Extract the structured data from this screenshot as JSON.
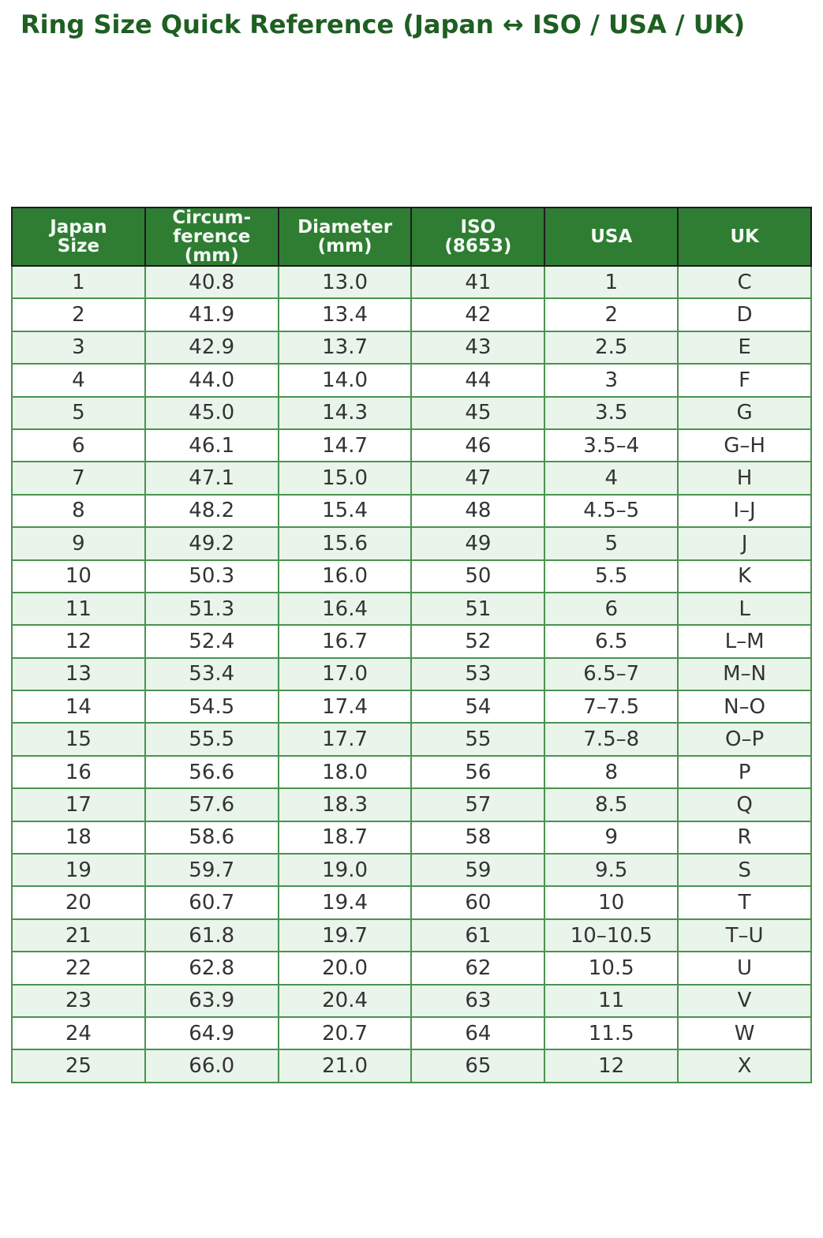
{
  "title": "Ring Size Quick Reference (Japan ↔ ISO / USA / UK)",
  "colors": {
    "title": "#1e5f22",
    "header_bg": "#2e7d32",
    "header_text": "#f5faf5",
    "header_border": "#1c1c1c",
    "grid_green": "#4a9350",
    "row_alt_bg": "#e9f4ea",
    "row_bg": "#ffffff",
    "cell_text": "#333333"
  },
  "chart_data": {
    "type": "table",
    "title": "Ring Size Quick Reference (Japan ↔ ISO / USA / UK)",
    "columns": [
      "Japan\nSize",
      "Circum-\nference\n(mm)",
      "Diameter\n(mm)",
      "ISO\n(8653)",
      "USA",
      "UK"
    ],
    "rows": [
      [
        "1",
        "40.8",
        "13.0",
        "41",
        "1",
        "C"
      ],
      [
        "2",
        "41.9",
        "13.4",
        "42",
        "2",
        "D"
      ],
      [
        "3",
        "42.9",
        "13.7",
        "43",
        "2.5",
        "E"
      ],
      [
        "4",
        "44.0",
        "14.0",
        "44",
        "3",
        "F"
      ],
      [
        "5",
        "45.0",
        "14.3",
        "45",
        "3.5",
        "G"
      ],
      [
        "6",
        "46.1",
        "14.7",
        "46",
        "3.5–4",
        "G–H"
      ],
      [
        "7",
        "47.1",
        "15.0",
        "47",
        "4",
        "H"
      ],
      [
        "8",
        "48.2",
        "15.4",
        "48",
        "4.5–5",
        "I–J"
      ],
      [
        "9",
        "49.2",
        "15.6",
        "49",
        "5",
        "J"
      ],
      [
        "10",
        "50.3",
        "16.0",
        "50",
        "5.5",
        "K"
      ],
      [
        "11",
        "51.3",
        "16.4",
        "51",
        "6",
        "L"
      ],
      [
        "12",
        "52.4",
        "16.7",
        "52",
        "6.5",
        "L–M"
      ],
      [
        "13",
        "53.4",
        "17.0",
        "53",
        "6.5–7",
        "M–N"
      ],
      [
        "14",
        "54.5",
        "17.4",
        "54",
        "7–7.5",
        "N–O"
      ],
      [
        "15",
        "55.5",
        "17.7",
        "55",
        "7.5–8",
        "O–P"
      ],
      [
        "16",
        "56.6",
        "18.0",
        "56",
        "8",
        "P"
      ],
      [
        "17",
        "57.6",
        "18.3",
        "57",
        "8.5",
        "Q"
      ],
      [
        "18",
        "58.6",
        "18.7",
        "58",
        "9",
        "R"
      ],
      [
        "19",
        "59.7",
        "19.0",
        "59",
        "9.5",
        "S"
      ],
      [
        "20",
        "60.7",
        "19.4",
        "60",
        "10",
        "T"
      ],
      [
        "21",
        "61.8",
        "19.7",
        "61",
        "10–10.5",
        "T–U"
      ],
      [
        "22",
        "62.8",
        "20.0",
        "62",
        "10.5",
        "U"
      ],
      [
        "23",
        "63.9",
        "20.4",
        "63",
        "11",
        "V"
      ],
      [
        "24",
        "64.9",
        "20.7",
        "64",
        "11.5",
        "W"
      ],
      [
        "25",
        "66.0",
        "21.0",
        "65",
        "12",
        "X"
      ]
    ]
  }
}
